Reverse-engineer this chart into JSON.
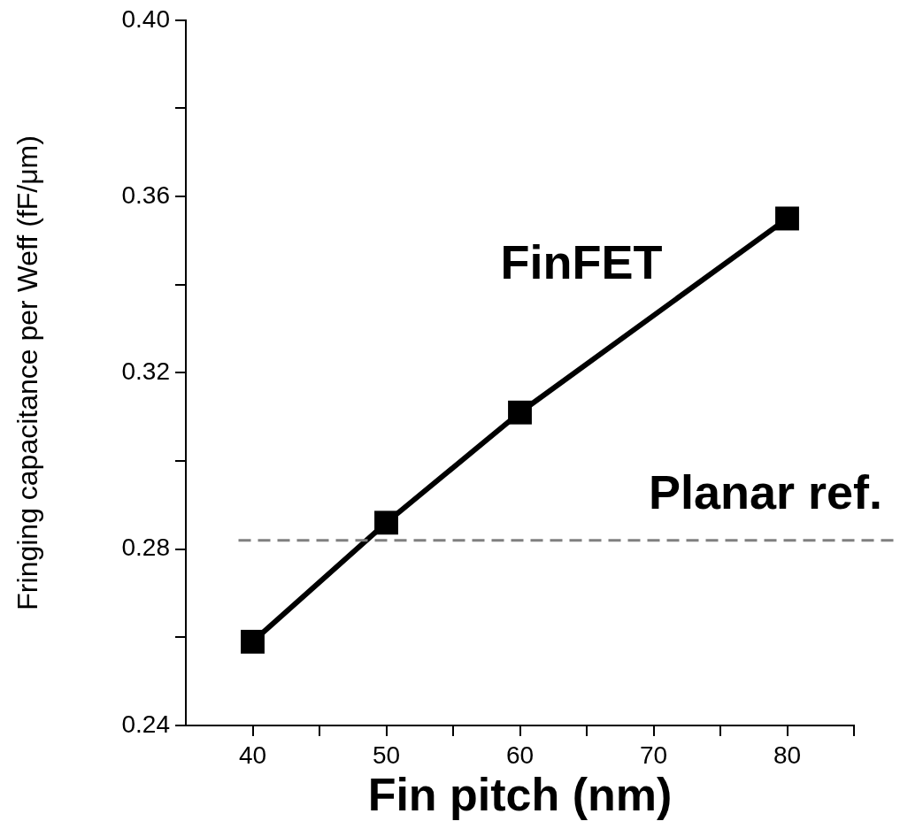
{
  "chart_data": {
    "type": "line",
    "xlabel": "Fin pitch (nm)",
    "ylabel": "Fringing capacitance per Weff (fF/μm)",
    "x": [
      40,
      50,
      60,
      80
    ],
    "series": [
      {
        "name": "FinFET",
        "color": "#000000",
        "values": [
          0.259,
          0.286,
          0.311,
          0.355
        ]
      }
    ],
    "xlim": [
      35,
      85
    ],
    "xticks": [
      40,
      {
        "value": 45,
        "label": null
      },
      50,
      {
        "value": 55,
        "label": null
      },
      60,
      {
        "value": 65,
        "label": null
      },
      70,
      {
        "value": 75,
        "label": null
      },
      80,
      {
        "value": 85,
        "label": null
      }
    ],
    "ylim": [
      0.24,
      0.4
    ],
    "yticks": [
      {
        "value": 0.24,
        "label": "0.24"
      },
      {
        "value": 0.26,
        "label": null
      },
      {
        "value": 0.28,
        "label": "0.28"
      },
      {
        "value": 0.3,
        "label": null
      },
      {
        "value": 0.32,
        "label": "0.32"
      },
      {
        "value": 0.34,
        "label": null
      },
      {
        "value": 0.36,
        "label": "0.36"
      },
      {
        "value": 0.38,
        "label": null
      },
      {
        "value": 0.4,
        "label": "0.40"
      }
    ],
    "ref_lines": [
      {
        "axis": "y",
        "value": 0.282,
        "label": "Planar ref.",
        "color": "#808080",
        "line_style": "dashed"
      }
    ],
    "grid": false,
    "legend": false,
    "marker": "square",
    "line_style": "solid"
  }
}
